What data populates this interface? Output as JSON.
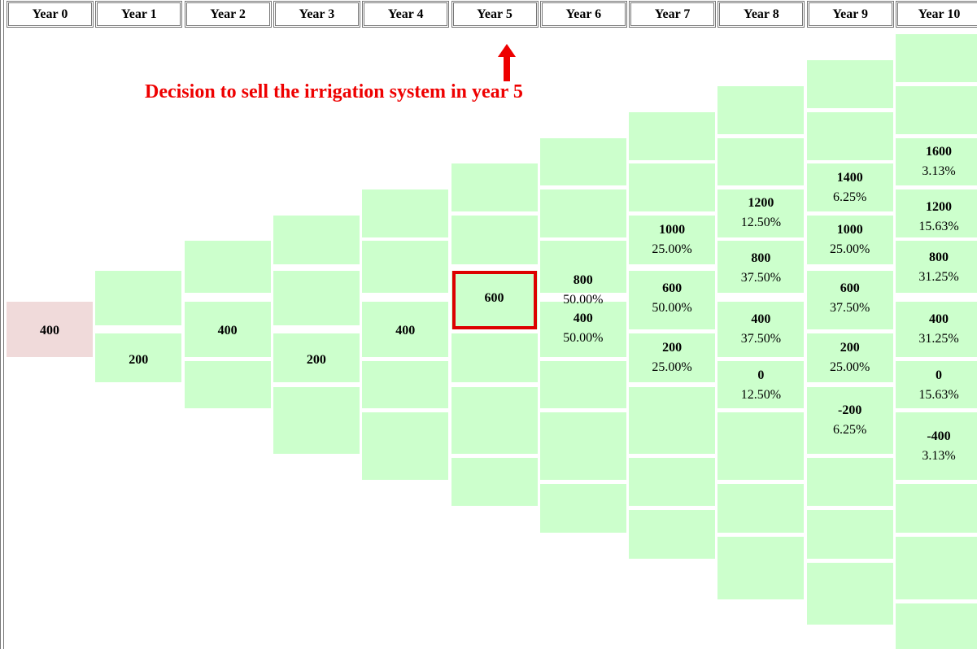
{
  "headers": [
    "Year 0",
    "Year 1",
    "Year 2",
    "Year 3",
    "Year 4",
    "Year 5",
    "Year 6",
    "Year 7",
    "Year 8",
    "Year 9",
    "Year 10"
  ],
  "annotation": "Decision to sell the irrigation system in year 5",
  "columns": [
    {
      "nodes": [
        {
          "value": "400"
        }
      ]
    },
    {
      "nodes": [
        {
          "value": "200"
        }
      ]
    },
    {
      "nodes": [
        {
          "value": "400"
        }
      ]
    },
    {
      "nodes": [
        {
          "value": "200"
        }
      ]
    },
    {
      "nodes": [
        {
          "value": "400"
        }
      ]
    },
    {
      "nodes": [
        {
          "value": "600"
        }
      ]
    },
    {
      "nodes": [
        {
          "value": "800",
          "probability": "50.00%"
        },
        {
          "value": "400",
          "probability": "50.00%"
        }
      ]
    },
    {
      "nodes": [
        {
          "value": "1000",
          "probability": "25.00%"
        },
        {
          "value": "600",
          "probability": "50.00%"
        },
        {
          "value": "200",
          "probability": "25.00%"
        }
      ]
    },
    {
      "nodes": [
        {
          "value": "1200",
          "probability": "12.50%"
        },
        {
          "value": "800",
          "probability": "37.50%"
        },
        {
          "value": "400",
          "probability": "37.50%"
        },
        {
          "value": "0",
          "probability": "12.50%"
        }
      ]
    },
    {
      "nodes": [
        {
          "value": "1400",
          "probability": "6.25%"
        },
        {
          "value": "1000",
          "probability": "25.00%"
        },
        {
          "value": "600",
          "probability": "37.50%"
        },
        {
          "value": "200",
          "probability": "25.00%"
        },
        {
          "value": "-200",
          "probability": "6.25%"
        }
      ]
    },
    {
      "nodes": [
        {
          "value": "1600",
          "probability": "3.13%"
        },
        {
          "value": "1200",
          "probability": "15.63%"
        },
        {
          "value": "800",
          "probability": "31.25%"
        },
        {
          "value": "400",
          "probability": "31.25%"
        },
        {
          "value": "0",
          "probability": "15.63%"
        },
        {
          "value": "-400",
          "probability": "3.13%"
        }
      ]
    }
  ]
}
